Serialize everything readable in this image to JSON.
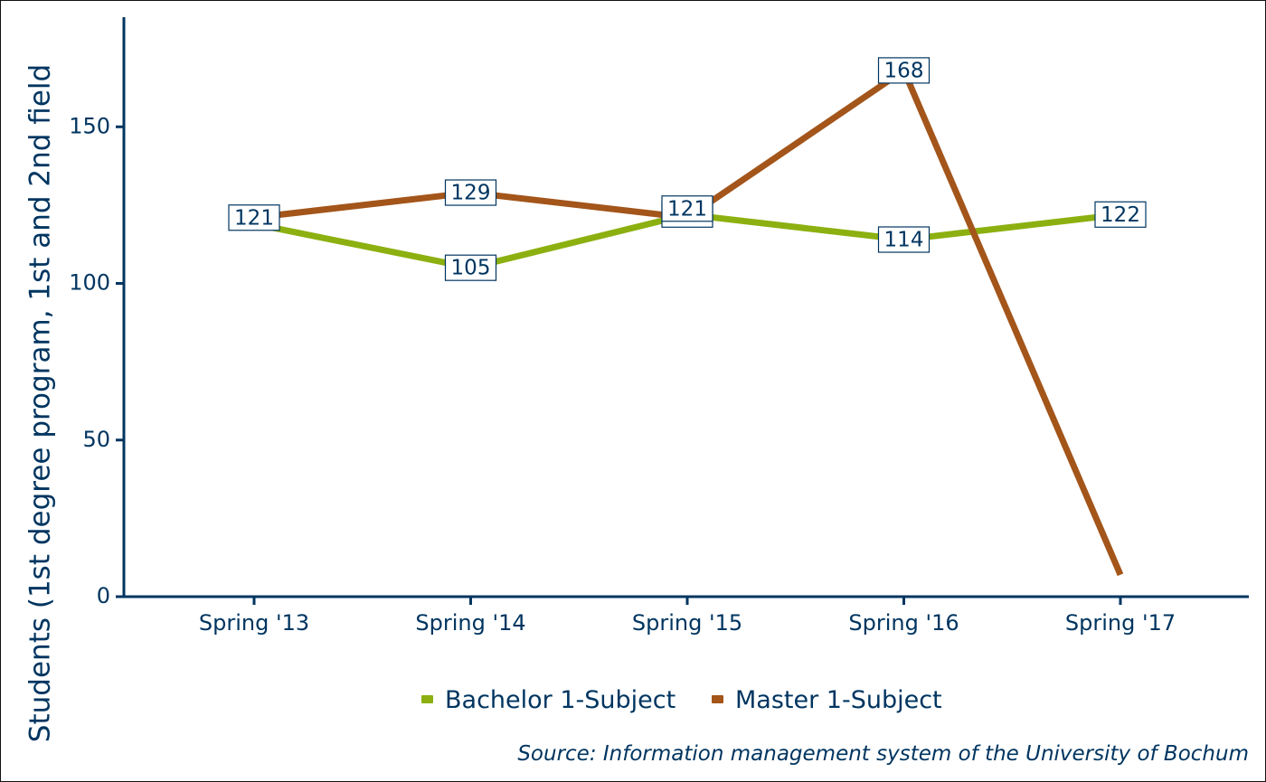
{
  "chart_data": {
    "type": "line",
    "categories": [
      "Spring '13",
      "Spring '14",
      "Spring '15",
      "Spring '16",
      "Spring '17"
    ],
    "series": [
      {
        "name": "Bachelor 1-Subject",
        "values": [
          119,
          105,
          122,
          114,
          122
        ],
        "labels": [
          "",
          "105",
          "122",
          "114",
          "122"
        ],
        "color": "#8cb010"
      },
      {
        "name": "Master 1-Subject",
        "values": [
          121,
          129,
          121,
          168,
          7
        ],
        "labels": [
          "121",
          "129",
          "121",
          "168",
          ""
        ],
        "color": "#a3551a"
      }
    ],
    "title": "",
    "xlabel": "",
    "ylabel": "Students (1st degree program, 1st and 2nd field",
    "ylim": [
      0,
      185
    ],
    "yticks": [
      0,
      50,
      100,
      150
    ],
    "legend_position": "bottom",
    "caption": "Source: Information management system of the University of Bochum",
    "grid": false,
    "axis_color": "#003560",
    "text_color": "#003560"
  }
}
